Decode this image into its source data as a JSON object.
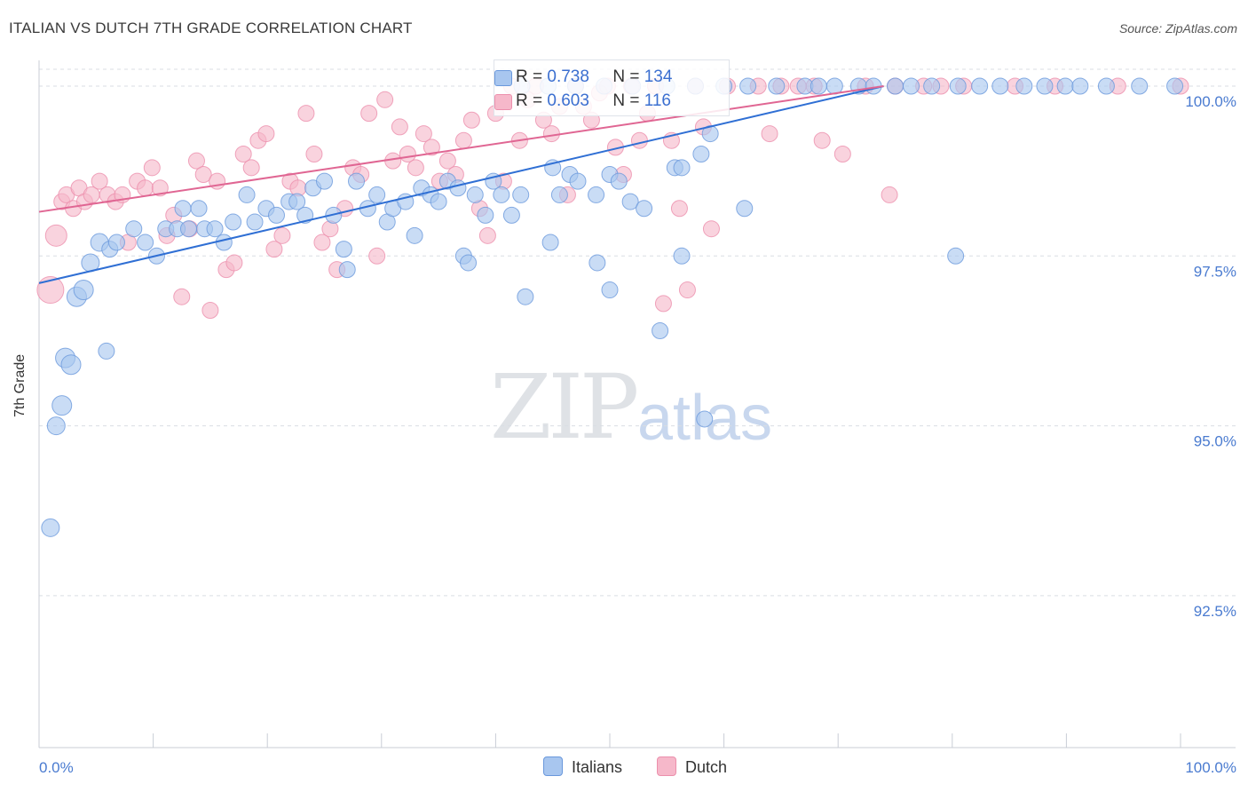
{
  "header": {
    "title": "ITALIAN VS DUTCH 7TH GRADE CORRELATION CHART",
    "source": "Source: ZipAtlas.com"
  },
  "watermark": {
    "zip": "ZIP",
    "atlas": "atlas"
  },
  "legend": {
    "rows": [
      {
        "r_label": "R = ",
        "r_value": "0.738",
        "n_label": "N = ",
        "n_value": "134"
      },
      {
        "r_label": "R = ",
        "r_value": "0.603",
        "n_label": "N = ",
        "n_value": "116"
      }
    ],
    "bottom": [
      "Italians",
      "Dutch"
    ]
  },
  "colors": {
    "italians_fill": "#a8c6ef",
    "italians_stroke": "#6a98dc",
    "italians_line": "#2f6fd4",
    "dutch_fill": "#f6b8ca",
    "dutch_stroke": "#ec8fac",
    "dutch_line": "#e06693",
    "tick_label": "#4a7bd0",
    "grid": "#d9dde3"
  },
  "chart_data": {
    "type": "scatter",
    "title": "ITALIAN VS DUTCH 7TH GRADE CORRELATION CHART",
    "xlabel": "",
    "ylabel": "7th Grade",
    "xlim": [
      0,
      100
    ],
    "ylim": [
      90.0,
      100.25
    ],
    "x_tick_labels": [
      "0.0%",
      "100.0%"
    ],
    "y_ticks": [
      92.5,
      95.0,
      97.5,
      100.0
    ],
    "y_tick_labels": [
      "92.5%",
      "95.0%",
      "97.5%",
      "100.0%"
    ],
    "grid": true,
    "legend_position": "top-center",
    "series": [
      {
        "name": "Italians",
        "R": 0.738,
        "N": 134,
        "trend": [
          [
            0,
            97.1
          ],
          [
            74,
            100.0
          ]
        ],
        "points": [
          [
            1,
            93.5,
            10
          ],
          [
            1.5,
            95.0,
            10
          ],
          [
            2,
            95.3,
            11
          ],
          [
            2.3,
            96.0,
            11
          ],
          [
            2.8,
            95.9,
            11
          ],
          [
            3.3,
            96.9,
            11
          ],
          [
            3.9,
            97.0,
            11
          ],
          [
            4.5,
            97.4,
            10
          ],
          [
            5.3,
            97.7,
            10
          ],
          [
            6.2,
            97.6,
            9
          ],
          [
            6.8,
            97.7,
            9
          ],
          [
            5.9,
            96.1,
            9
          ],
          [
            8.3,
            97.9,
            9
          ],
          [
            9.3,
            97.7,
            9
          ],
          [
            10.3,
            97.5,
            9
          ],
          [
            11.1,
            97.9,
            9
          ],
          [
            12.1,
            97.9,
            9
          ],
          [
            12.6,
            98.2,
            9
          ],
          [
            13.1,
            97.9,
            9
          ],
          [
            14.0,
            98.2,
            9
          ],
          [
            14.5,
            97.9,
            9
          ],
          [
            15.4,
            97.9,
            9
          ],
          [
            16.2,
            97.7,
            9
          ],
          [
            17.0,
            98.0,
            9
          ],
          [
            18.2,
            98.4,
            9
          ],
          [
            18.9,
            98.0,
            9
          ],
          [
            19.9,
            98.2,
            9
          ],
          [
            20.8,
            98.1,
            9
          ],
          [
            21.9,
            98.3,
            9
          ],
          [
            22.6,
            98.3,
            9
          ],
          [
            23.3,
            98.1,
            9
          ],
          [
            24.0,
            98.5,
            9
          ],
          [
            25.0,
            98.6,
            9
          ],
          [
            25.8,
            98.1,
            9
          ],
          [
            26.7,
            97.6,
            9
          ],
          [
            27.0,
            97.3,
            9
          ],
          [
            27.8,
            98.6,
            9
          ],
          [
            28.8,
            98.2,
            9
          ],
          [
            29.6,
            98.4,
            9
          ],
          [
            30.5,
            98.0,
            9
          ],
          [
            31.0,
            98.2,
            9
          ],
          [
            32.1,
            98.3,
            9
          ],
          [
            32.9,
            97.8,
            9
          ],
          [
            33.5,
            98.5,
            9
          ],
          [
            34.3,
            98.4,
            9
          ],
          [
            35.0,
            98.3,
            9
          ],
          [
            35.8,
            98.6,
            9
          ],
          [
            36.7,
            98.5,
            9
          ],
          [
            37.2,
            97.5,
            9
          ],
          [
            37.6,
            97.4,
            9
          ],
          [
            38.2,
            98.4,
            9
          ],
          [
            39.1,
            98.1,
            9
          ],
          [
            39.8,
            98.6,
            9
          ],
          [
            40.5,
            98.4,
            9
          ],
          [
            41.4,
            98.1,
            9
          ],
          [
            42.2,
            98.4,
            9
          ],
          [
            45.0,
            98.8,
            9
          ],
          [
            45.6,
            98.4,
            9
          ],
          [
            46.5,
            98.7,
            9
          ],
          [
            47.2,
            98.6,
            9
          ],
          [
            48.8,
            98.4,
            9
          ],
          [
            50.0,
            98.7,
            9
          ],
          [
            50.8,
            98.6,
            9
          ],
          [
            51.8,
            98.3,
            9
          ],
          [
            53.0,
            98.2,
            9
          ],
          [
            55.7,
            98.8,
            9
          ],
          [
            44.8,
            97.7,
            9
          ],
          [
            48.9,
            97.4,
            9
          ],
          [
            42.6,
            96.9,
            9
          ],
          [
            50.0,
            97.0,
            9
          ],
          [
            56.3,
            98.8,
            9
          ],
          [
            58.0,
            99.0,
            9
          ],
          [
            58.8,
            99.3,
            9
          ],
          [
            54.4,
            96.4,
            9
          ],
          [
            58.3,
            95.1,
            9
          ],
          [
            61.8,
            98.2,
            9
          ],
          [
            56.3,
            97.5,
            9
          ],
          [
            80.3,
            97.5,
            9
          ],
          [
            62.1,
            100.0,
            9
          ],
          [
            64.6,
            100.0,
            9
          ],
          [
            67.1,
            100.0,
            9
          ],
          [
            68.3,
            100.0,
            9
          ],
          [
            69.7,
            100.0,
            9
          ],
          [
            71.8,
            100.0,
            9
          ],
          [
            73.1,
            100.0,
            9
          ],
          [
            75.0,
            100.0,
            9
          ],
          [
            76.4,
            100.0,
            9
          ],
          [
            78.2,
            100.0,
            9
          ],
          [
            80.5,
            100.0,
            9
          ],
          [
            82.4,
            100.0,
            9
          ],
          [
            84.2,
            100.0,
            9
          ],
          [
            86.3,
            100.0,
            9
          ],
          [
            88.1,
            100.0,
            9
          ],
          [
            89.9,
            100.0,
            9
          ],
          [
            91.2,
            100.0,
            9
          ],
          [
            93.5,
            100.0,
            9
          ],
          [
            96.4,
            100.0,
            9
          ],
          [
            99.5,
            100.0,
            9
          ],
          [
            60.0,
            100.0,
            9
          ],
          [
            57.5,
            100.0,
            9
          ],
          [
            55.0,
            100.0,
            9
          ],
          [
            52.0,
            100.0,
            9
          ],
          [
            49.5,
            100.0,
            9
          ],
          [
            47.0,
            100.0,
            9
          ],
          [
            44.6,
            100.0,
            9
          ],
          [
            42.3,
            100.0,
            9
          ]
        ]
      },
      {
        "name": "Dutch",
        "R": 0.603,
        "N": 116,
        "trend": [
          [
            0,
            98.15
          ],
          [
            74,
            100.0
          ]
        ],
        "points": [
          [
            1,
            97.0,
            15
          ],
          [
            1.5,
            97.8,
            12
          ],
          [
            2.0,
            98.3,
            9
          ],
          [
            2.4,
            98.4,
            9
          ],
          [
            3.0,
            98.2,
            9
          ],
          [
            3.5,
            98.5,
            9
          ],
          [
            4.0,
            98.3,
            9
          ],
          [
            4.6,
            98.4,
            9
          ],
          [
            5.3,
            98.6,
            9
          ],
          [
            6.0,
            98.4,
            9
          ],
          [
            6.7,
            98.3,
            9
          ],
          [
            7.3,
            98.4,
            9
          ],
          [
            7.8,
            97.7,
            9
          ],
          [
            8.6,
            98.6,
            9
          ],
          [
            9.3,
            98.5,
            9
          ],
          [
            9.9,
            98.8,
            9
          ],
          [
            10.6,
            98.5,
            9
          ],
          [
            11.2,
            97.8,
            9
          ],
          [
            11.8,
            98.1,
            9
          ],
          [
            12.5,
            96.9,
            9
          ],
          [
            13.2,
            97.9,
            9
          ],
          [
            13.8,
            98.9,
            9
          ],
          [
            14.4,
            98.7,
            9
          ],
          [
            15.0,
            96.7,
            9
          ],
          [
            15.6,
            98.6,
            9
          ],
          [
            16.4,
            97.3,
            9
          ],
          [
            17.1,
            97.4,
            9
          ],
          [
            17.9,
            99.0,
            9
          ],
          [
            18.6,
            98.8,
            9
          ],
          [
            19.2,
            99.2,
            9
          ],
          [
            19.9,
            99.3,
            9
          ],
          [
            20.6,
            97.6,
            9
          ],
          [
            21.3,
            97.8,
            9
          ],
          [
            22.0,
            98.6,
            9
          ],
          [
            22.7,
            98.5,
            9
          ],
          [
            23.4,
            99.6,
            9
          ],
          [
            24.1,
            99.0,
            9
          ],
          [
            24.8,
            97.7,
            9
          ],
          [
            25.5,
            97.9,
            9
          ],
          [
            26.1,
            97.3,
            9
          ],
          [
            26.8,
            98.2,
            9
          ],
          [
            27.5,
            98.8,
            9
          ],
          [
            28.2,
            98.7,
            9
          ],
          [
            28.9,
            99.6,
            9
          ],
          [
            29.6,
            97.5,
            9
          ],
          [
            30.3,
            99.8,
            9
          ],
          [
            31.0,
            98.9,
            9
          ],
          [
            31.6,
            99.4,
            9
          ],
          [
            32.3,
            99.0,
            9
          ],
          [
            33.0,
            98.8,
            9
          ],
          [
            33.7,
            99.3,
            9
          ],
          [
            34.4,
            99.1,
            9
          ],
          [
            35.1,
            98.6,
            9
          ],
          [
            35.8,
            98.9,
            9
          ],
          [
            36.5,
            98.7,
            9
          ],
          [
            37.2,
            99.2,
            9
          ],
          [
            37.9,
            99.5,
            9
          ],
          [
            38.6,
            98.2,
            9
          ],
          [
            39.3,
            97.8,
            9
          ],
          [
            40.0,
            99.6,
            9
          ],
          [
            40.7,
            98.6,
            9
          ],
          [
            41.4,
            100.0,
            9
          ],
          [
            42.1,
            99.2,
            9
          ],
          [
            42.8,
            99.8,
            9
          ],
          [
            43.5,
            100.0,
            9
          ],
          [
            44.2,
            99.5,
            9
          ],
          [
            44.9,
            99.3,
            9
          ],
          [
            45.6,
            99.7,
            9
          ],
          [
            46.3,
            98.4,
            9
          ],
          [
            47.0,
            100.0,
            9
          ],
          [
            47.7,
            99.7,
            9
          ],
          [
            48.4,
            99.5,
            9
          ],
          [
            49.1,
            99.9,
            9
          ],
          [
            49.8,
            100.0,
            9
          ],
          [
            50.5,
            99.1,
            9
          ],
          [
            51.2,
            98.7,
            9
          ],
          [
            51.9,
            100.0,
            9
          ],
          [
            52.6,
            99.2,
            9
          ],
          [
            53.3,
            99.6,
            9
          ],
          [
            54.0,
            100.0,
            9
          ],
          [
            54.7,
            96.8,
            9
          ],
          [
            55.4,
            99.2,
            9
          ],
          [
            56.1,
            98.2,
            9
          ],
          [
            56.8,
            97.0,
            9
          ],
          [
            57.5,
            100.0,
            9
          ],
          [
            58.2,
            99.4,
            9
          ],
          [
            58.9,
            97.9,
            9
          ],
          [
            60.3,
            100.0,
            9
          ],
          [
            63.0,
            100.0,
            9
          ],
          [
            65.0,
            100.0,
            9
          ],
          [
            66.5,
            100.0,
            9
          ],
          [
            67.9,
            100.0,
            9
          ],
          [
            68.6,
            99.2,
            9
          ],
          [
            70.4,
            99.0,
            9
          ],
          [
            72.4,
            100.0,
            9
          ],
          [
            75.0,
            100.0,
            9
          ],
          [
            77.5,
            100.0,
            9
          ],
          [
            79.0,
            100.0,
            9
          ],
          [
            81.0,
            100.0,
            9
          ],
          [
            85.5,
            100.0,
            9
          ],
          [
            89.0,
            100.0,
            9
          ],
          [
            94.5,
            100.0,
            9
          ],
          [
            100.0,
            100.0,
            9
          ],
          [
            74.5,
            98.4,
            9
          ],
          [
            64.0,
            99.3,
            9
          ]
        ]
      }
    ]
  }
}
